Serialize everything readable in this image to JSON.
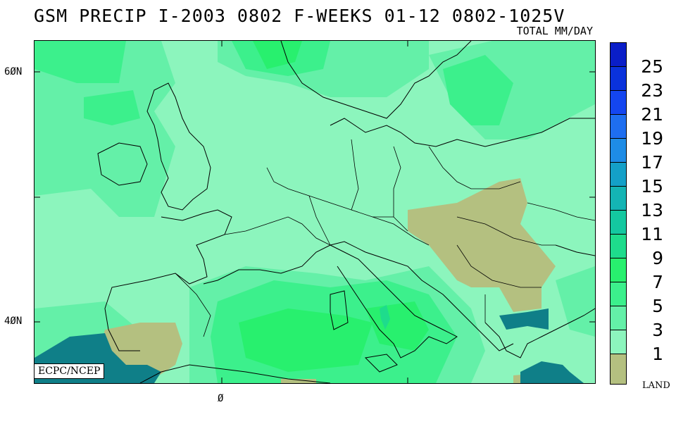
{
  "map": {
    "title": "GSM PRECIP  I-2003 0802 F-WEEKS 01-12 0802-1025V",
    "units": "TOTAL MM/DAY",
    "credit": "ECPC/NCEP",
    "lat_labels": [
      "6ØN",
      "4ØN"
    ],
    "lon_labels": [
      "Ø"
    ],
    "legend": {
      "levels": [
        {
          "label": "25",
          "color": "#0a1ec8"
        },
        {
          "label": "23",
          "color": "#0a32dc"
        },
        {
          "label": "21",
          "color": "#1446f0"
        },
        {
          "label": "19",
          "color": "#1e6ef0"
        },
        {
          "label": "17",
          "color": "#1e8ce6"
        },
        {
          "label": "15",
          "color": "#14a0c8"
        },
        {
          "label": "13",
          "color": "#14b4b4"
        },
        {
          "label": "11",
          "color": "#14c8a0"
        },
        {
          "label": "9",
          "color": "#1edc8c"
        },
        {
          "label": "7",
          "color": "#28f06e"
        },
        {
          "label": "5",
          "color": "#3cf08c"
        },
        {
          "label": "3",
          "color": "#64f0a8"
        },
        {
          "label": "1",
          "color": "#8cf5bd"
        }
      ],
      "land_label": "LAND",
      "land_color": "#b4c080"
    }
  }
}
